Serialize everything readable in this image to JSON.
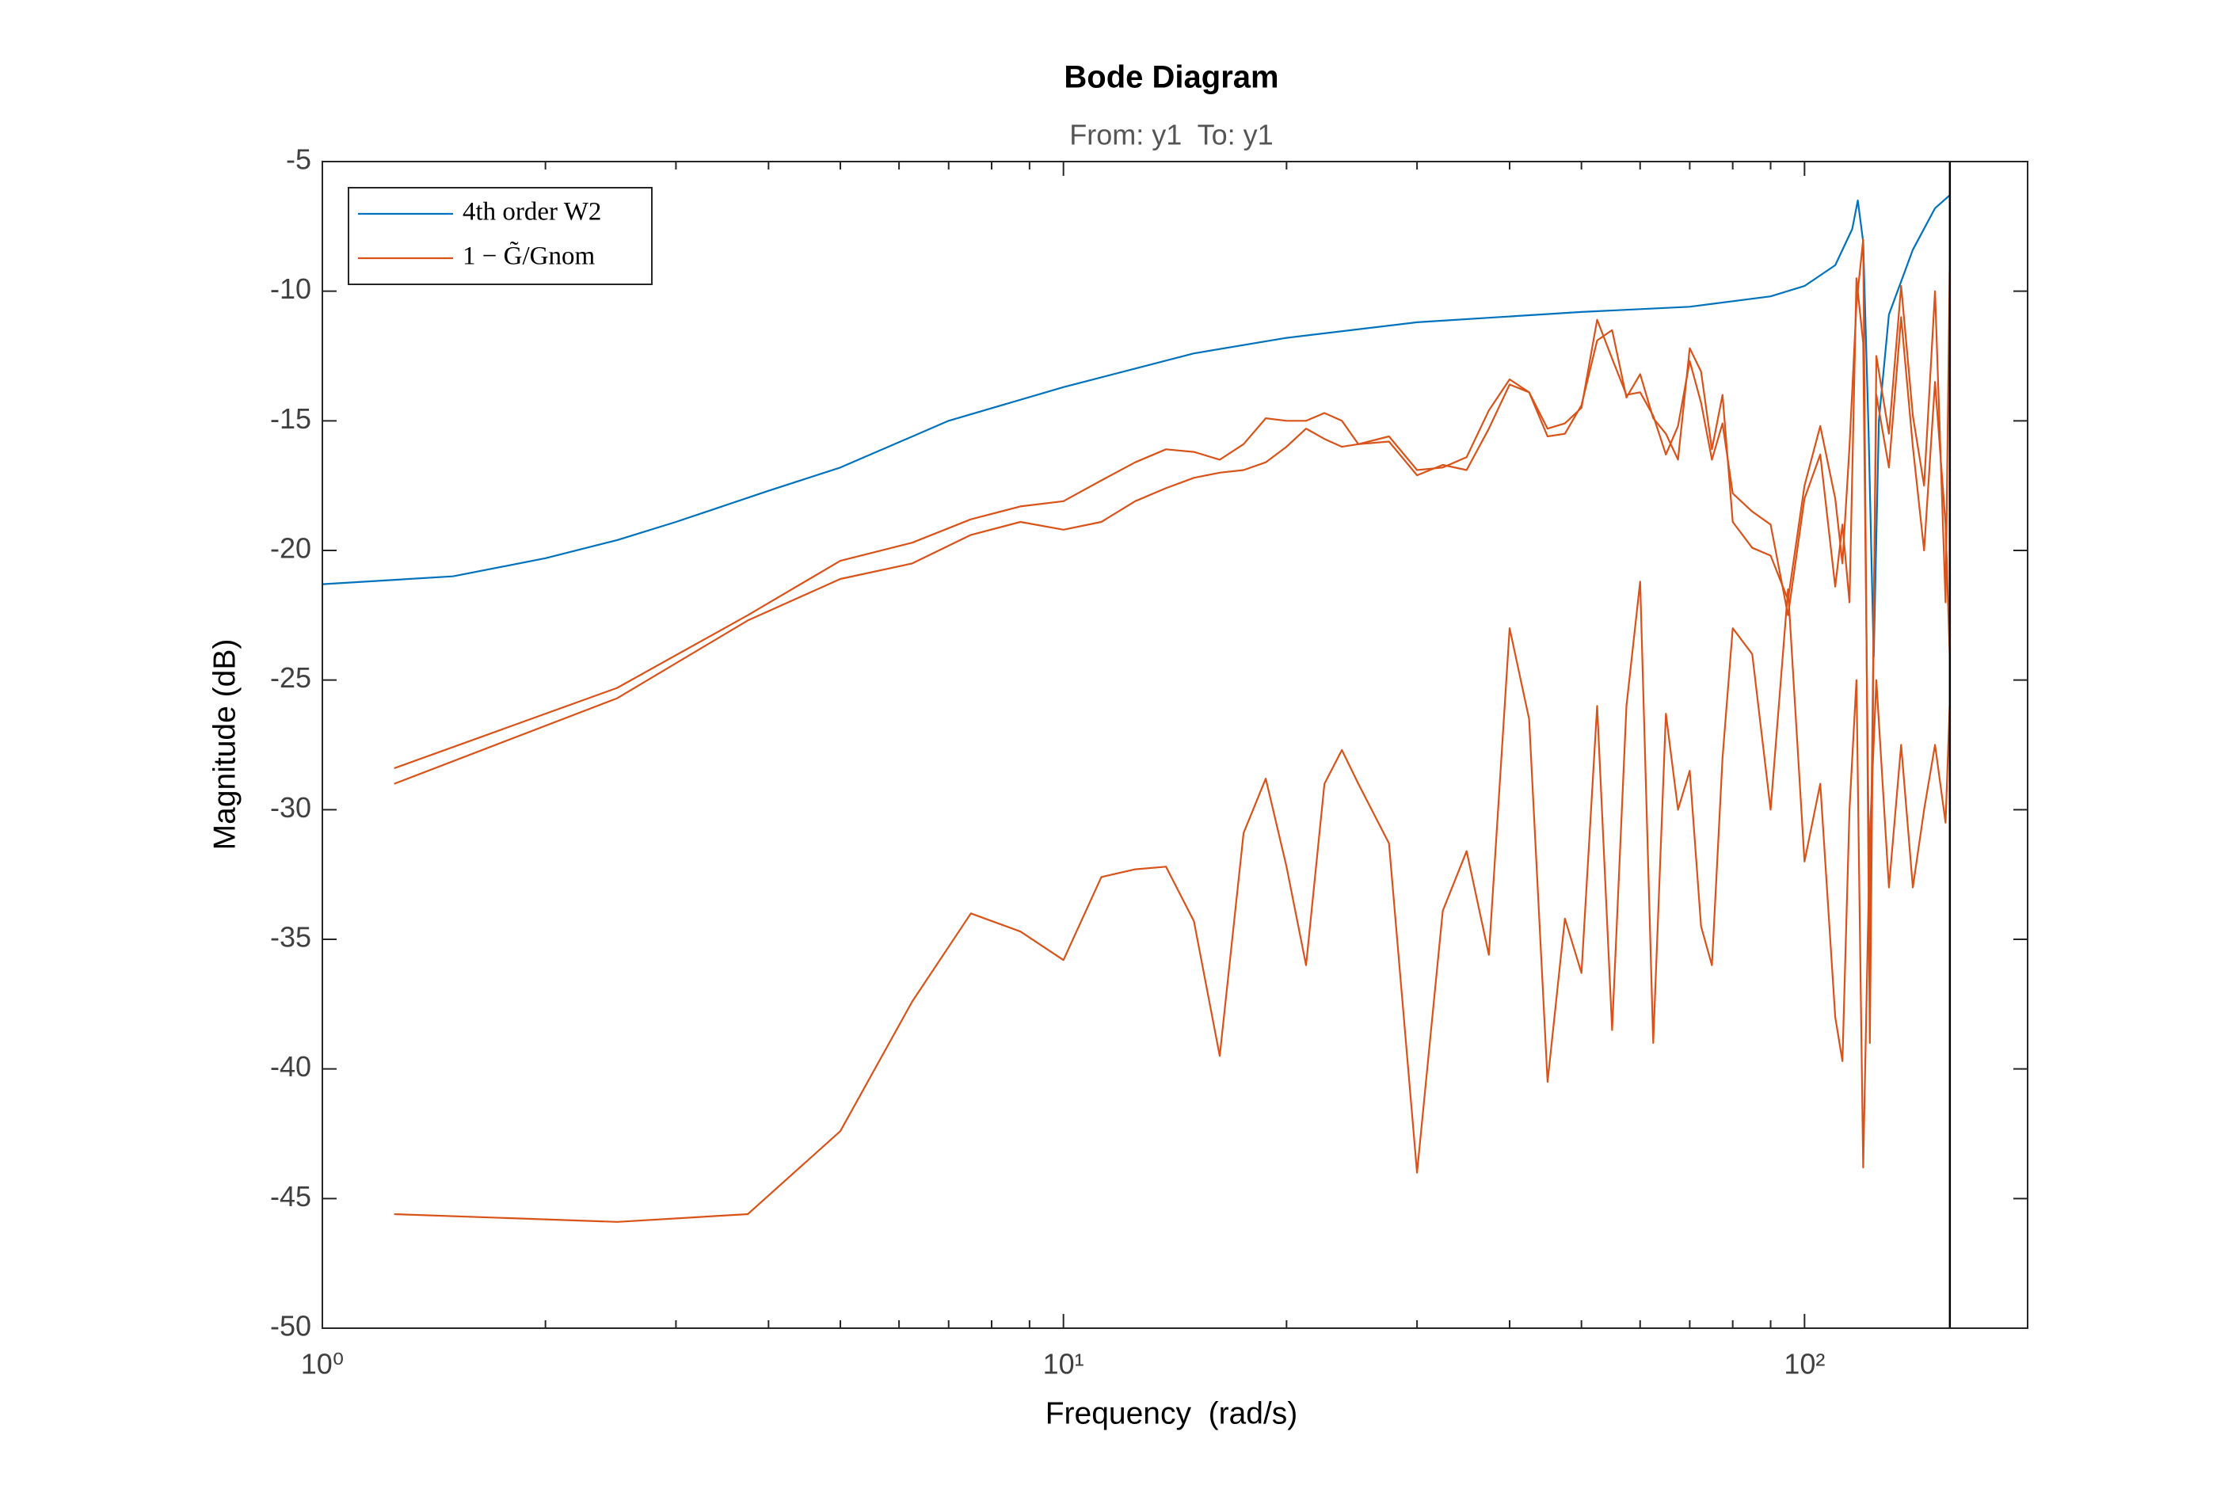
{
  "chart_data": {
    "type": "line",
    "title": "Bode Diagram",
    "subtitle": "From: y1  To: y1",
    "x_label": "Frequency  (rad/s)",
    "y_label": "Magnitude (dB)",
    "xscale": "log",
    "xlim": [
      1,
      200
    ],
    "ylim": [
      -50,
      -5
    ],
    "xticks": [
      {
        "value": 1,
        "label": "10⁰"
      },
      {
        "value": 10,
        "label": "10¹"
      },
      {
        "value": 100,
        "label": "10²"
      }
    ],
    "xminorticks": [
      2,
      3,
      4,
      5,
      6,
      7,
      8,
      9,
      20,
      30,
      40,
      50,
      60,
      70,
      80,
      90
    ],
    "yticks": [
      -50,
      -45,
      -40,
      -35,
      -30,
      -25,
      -20,
      -15,
      -10,
      -5
    ],
    "grid": false,
    "legend": "northwest",
    "vlines": [
      157.08
    ],
    "series": [
      {
        "name": "4th order W2",
        "color": "#0072bd",
        "x": [
          1,
          1.5,
          2,
          2.5,
          3,
          4,
          5,
          7,
          10,
          15,
          20,
          30,
          50,
          70,
          90,
          100,
          110,
          116,
          118,
          120,
          122,
          124,
          126,
          130,
          140,
          150,
          157
        ],
        "values": [
          -21.3,
          -21.0,
          -20.3,
          -19.6,
          -18.9,
          -17.7,
          -16.8,
          -15.0,
          -13.7,
          -12.4,
          -11.8,
          -11.2,
          -10.8,
          -10.6,
          -10.2,
          -9.8,
          -9.0,
          -7.6,
          -6.5,
          -8.1,
          -15.3,
          -24.1,
          -15.0,
          -10.9,
          -8.4,
          -6.8,
          -6.3
        ]
      },
      {
        "name": "1 − G̃/Gnom",
        "color": "#d95319",
        "x": [
          1.25,
          2.5,
          3.75,
          5,
          6.25,
          7.5,
          8.75,
          10,
          11.25,
          12.5,
          13.75,
          15,
          16.25,
          17.5,
          18.75,
          20,
          21.25,
          22.5,
          23.75,
          25,
          27.5,
          30,
          32.5,
          35,
          37.5,
          40,
          42.5,
          45,
          47.5,
          50,
          52.5,
          55,
          57.5,
          60,
          62.5,
          65,
          67.5,
          70,
          72.5,
          75,
          77.5,
          80,
          85,
          90,
          95,
          100,
          105,
          110,
          112.5,
          115,
          117.5,
          120,
          122.5,
          125,
          130,
          135,
          140,
          145,
          150,
          155,
          157
        ],
        "values": [
          -28.4,
          -25.3,
          -22.5,
          -20.4,
          -19.7,
          -18.8,
          -18.3,
          -18.1,
          -17.3,
          -16.6,
          -16.1,
          -16.2,
          -16.5,
          -15.9,
          -14.9,
          -15.0,
          -15.0,
          -14.7,
          -15.0,
          -15.9,
          -15.6,
          -16.9,
          -16.8,
          -16.4,
          -14.6,
          -13.4,
          -13.9,
          -15.6,
          -15.5,
          -14.4,
          -11.9,
          -11.5,
          -14.1,
          -13.2,
          -14.9,
          -15.5,
          -16.5,
          -12.2,
          -13.1,
          -16.1,
          -14.0,
          -18.9,
          -19.9,
          -20.2,
          -21.9,
          -17.5,
          -15.2,
          -18.0,
          -20.5,
          -16.0,
          -10.5,
          -8.0,
          -39.0,
          -12.5,
          -15.5,
          -9.8,
          -14.8,
          -17.5,
          -10.0,
          -22.0,
          -9.2
        ]
      },
      {
        "color": "#d95319",
        "x": [
          1.25,
          2.5,
          3.75,
          5,
          6.25,
          7.5,
          8.75,
          10,
          11.25,
          12.5,
          13.75,
          15,
          16.25,
          17.5,
          18.75,
          20,
          21.25,
          22.5,
          23.75,
          25,
          27.5,
          30,
          32.5,
          35,
          37.5,
          40,
          42.5,
          45,
          47.5,
          50,
          52.5,
          55,
          57.5,
          60,
          62.5,
          65,
          67.5,
          70,
          72.5,
          75,
          77.5,
          80,
          85,
          90,
          95,
          100,
          105,
          110,
          112.5,
          115,
          117.5,
          120,
          122.5,
          125,
          130,
          135,
          140,
          145,
          150,
          155,
          157
        ],
        "values": [
          -29.0,
          -25.7,
          -22.7,
          -21.1,
          -20.5,
          -19.4,
          -18.9,
          -19.2,
          -18.9,
          -18.1,
          -17.6,
          -17.2,
          -17.0,
          -16.9,
          -16.6,
          -16.0,
          -15.3,
          -15.7,
          -16.0,
          -15.9,
          -15.8,
          -17.1,
          -16.7,
          -16.9,
          -15.3,
          -13.6,
          -13.9,
          -15.3,
          -15.1,
          -14.5,
          -11.1,
          -12.6,
          -14.0,
          -13.9,
          -14.8,
          -16.3,
          -15.2,
          -12.7,
          -14.3,
          -16.5,
          -15.1,
          -17.8,
          -18.5,
          -19.0,
          -22.5,
          -18.0,
          -16.3,
          -21.4,
          -19.0,
          -22.0,
          -9.5,
          -12.0,
          -35.0,
          -14.0,
          -16.8,
          -11.0,
          -16.0,
          -20.0,
          -13.5,
          -19.0,
          -24.0
        ]
      },
      {
        "color": "#d95319",
        "x": [
          1.25,
          2.5,
          3.75,
          5,
          6.25,
          7.5,
          8.75,
          10,
          11.25,
          12.5,
          13.75,
          15,
          16.25,
          17.5,
          18.75,
          20,
          21.25,
          22.5,
          23.75,
          25,
          27.5,
          30,
          32.5,
          35,
          37.5,
          40,
          42.5,
          45,
          47.5,
          50,
          52.5,
          55,
          57.5,
          60,
          62.5,
          65,
          67.5,
          70,
          72.5,
          75,
          77.5,
          80,
          85,
          90,
          95,
          100,
          105,
          110,
          112.5,
          115,
          117.5,
          120,
          122.5,
          125,
          130,
          135,
          140,
          145,
          150,
          155,
          157
        ],
        "values": [
          -45.6,
          -45.9,
          -45.6,
          -42.4,
          -37.4,
          -34.0,
          -34.7,
          -35.8,
          -32.6,
          -32.3,
          -32.2,
          -34.3,
          -39.5,
          -30.9,
          -28.8,
          -32.2,
          -36.0,
          -29.0,
          -27.7,
          -29.0,
          -31.3,
          -44.0,
          -33.9,
          -31.6,
          -35.6,
          -23.0,
          -26.5,
          -40.5,
          -34.2,
          -36.3,
          -26.0,
          -38.5,
          -26.0,
          -21.2,
          -39.0,
          -26.3,
          -30.0,
          -28.5,
          -34.5,
          -36.0,
          -28.0,
          -23.0,
          -24.0,
          -30.0,
          -21.5,
          -32.0,
          -29.0,
          -38.0,
          -39.7,
          -30.0,
          -25.0,
          -43.8,
          -31.0,
          -25.0,
          -33.0,
          -27.5,
          -33.0,
          -30.0,
          -27.5,
          -30.5,
          -26.0
        ]
      }
    ]
  }
}
